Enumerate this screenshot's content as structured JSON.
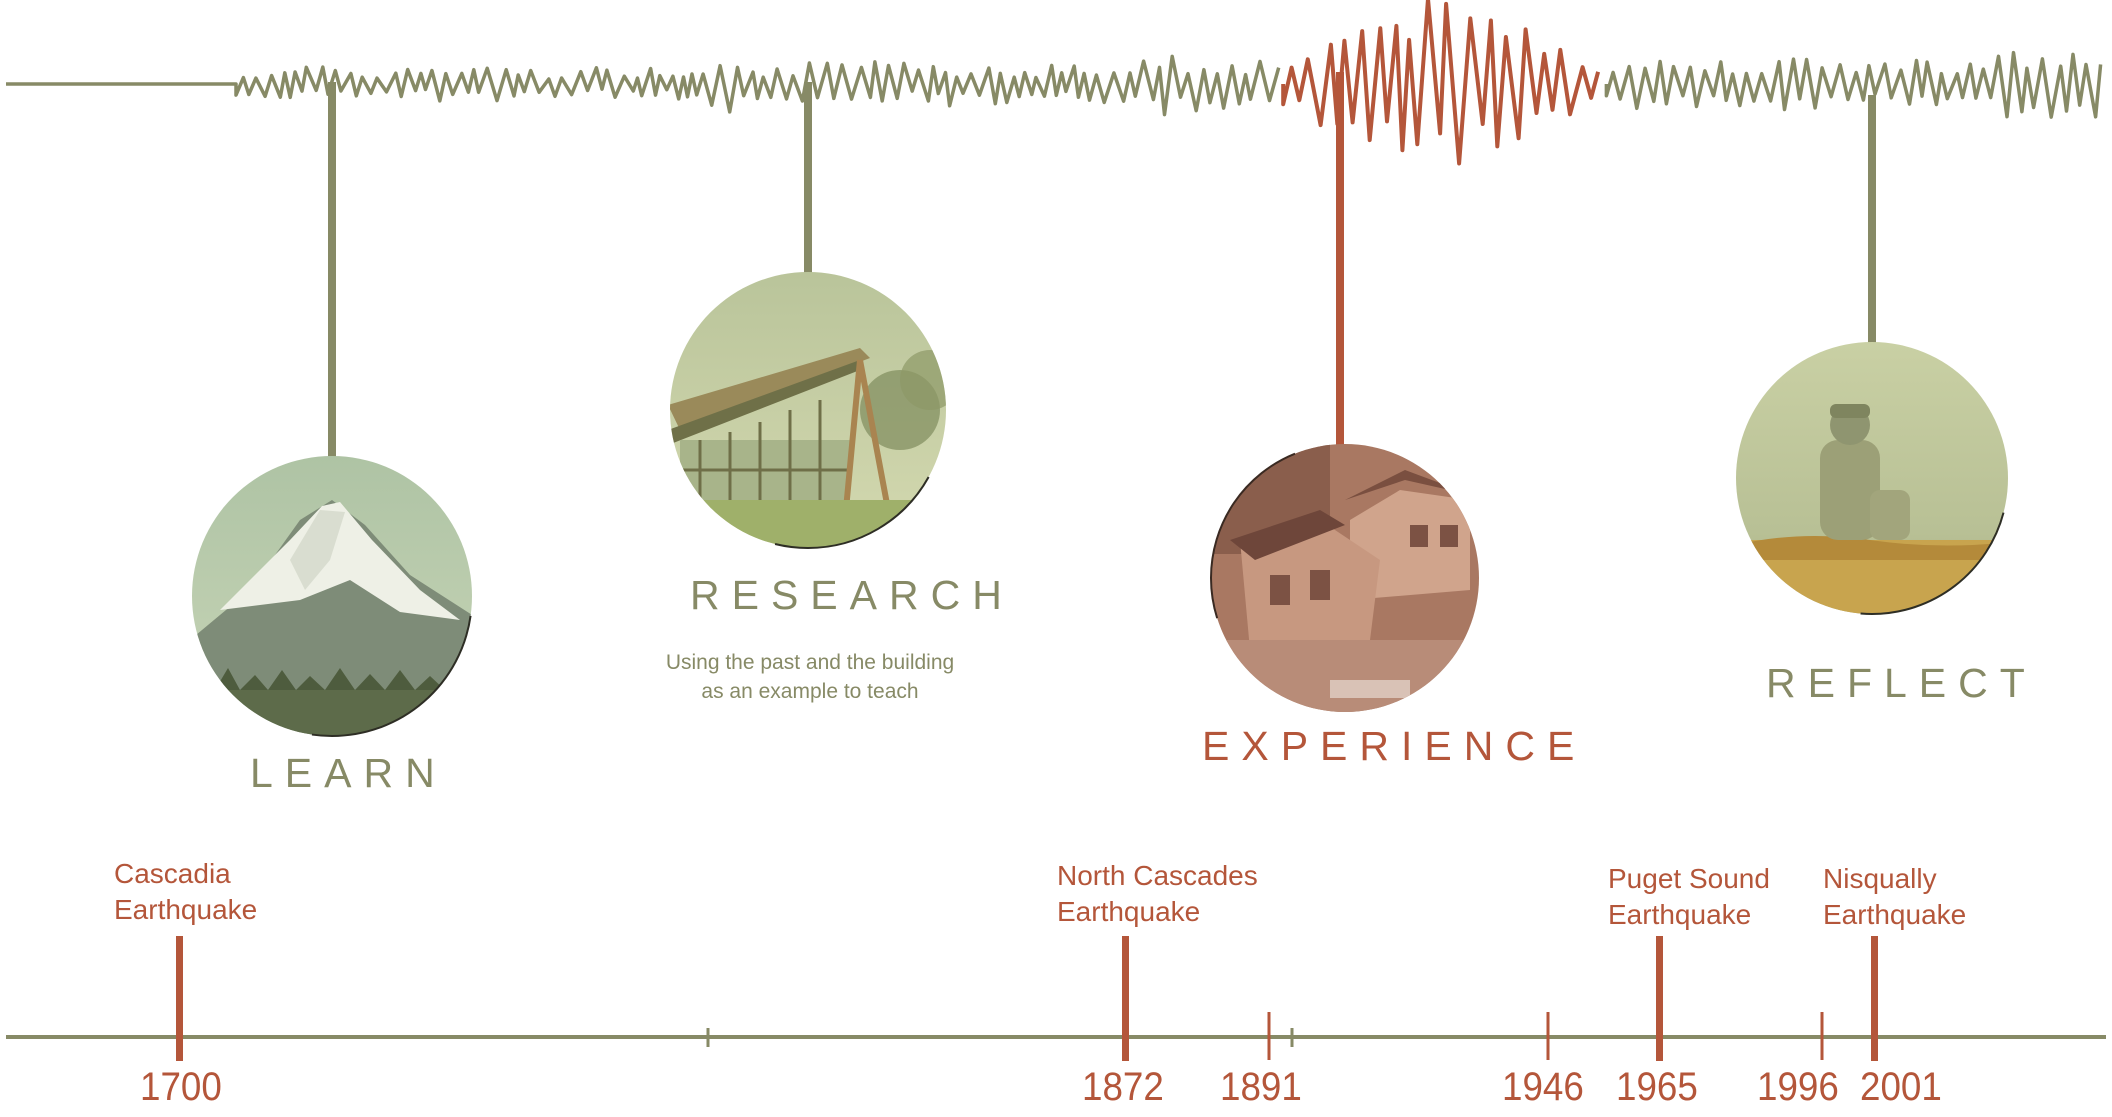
{
  "colors": {
    "olive": "#878a66",
    "rust": "#b4563a",
    "background": "#ffffff"
  },
  "stages": [
    {
      "id": "learn",
      "title": "LEARN",
      "description": "",
      "color": "#878a66",
      "image": "snow-capped-mountain"
    },
    {
      "id": "research",
      "title": "RESEARCH",
      "description_lines": [
        "Using the past and the building",
        "as an example to teach"
      ],
      "color": "#878a66",
      "image": "timber-building"
    },
    {
      "id": "experience",
      "title": "EXPERIENCE",
      "description": "",
      "color": "#b4563a",
      "image": "collapsed-houses"
    },
    {
      "id": "reflect",
      "title": "REFLECT",
      "description": "",
      "color": "#878a66",
      "image": "person-sitting-by-sea"
    }
  ],
  "timeline": {
    "events": [
      {
        "name_lines": [
          "Cascadia",
          "Earthquake"
        ],
        "year": "1700"
      },
      {
        "name_lines": [
          "North Cascades",
          "Earthquake"
        ],
        "year": "1872"
      },
      {
        "name_lines": [
          "Puget Sound",
          "Earthquake"
        ],
        "year": "1965"
      },
      {
        "name_lines": [
          "Nisqually",
          "Earthquake"
        ],
        "year": "2001"
      }
    ],
    "other_years": [
      "1891",
      "1946",
      "1996"
    ]
  }
}
